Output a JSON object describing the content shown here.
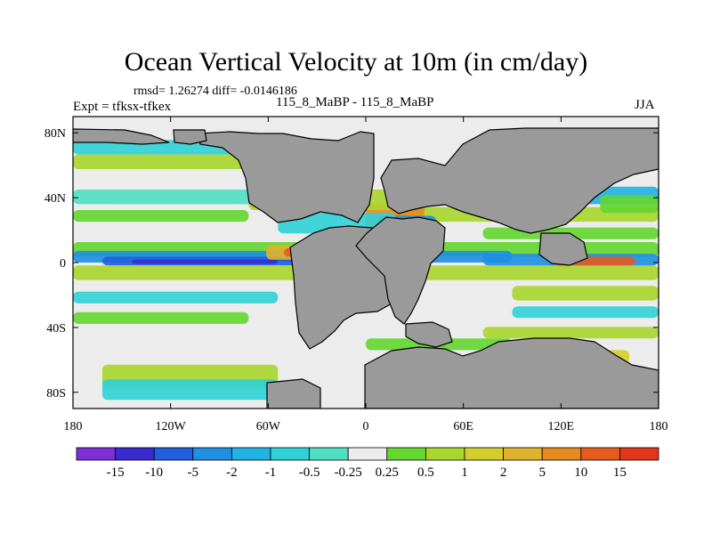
{
  "chart_data": {
    "type": "heatmap",
    "title": "Ocean Vertical Velocity at 10m (in cm/day)",
    "subtitle_stats": "rmsd= 1.26274 diff= -0.0146186",
    "experiment_label": "Expt = tfksx-tfkex",
    "runs_label": "115_8_MaBP - 115_8_MaBP",
    "season_label": "JJA",
    "x_ticks": [
      "180",
      "120W",
      "60W",
      "0",
      "60E",
      "120E",
      "180"
    ],
    "y_ticks": [
      "80N",
      "40N",
      "0",
      "40S",
      "80S"
    ],
    "xlim": [
      -180,
      180
    ],
    "ylim": [
      -90,
      90
    ],
    "colorbar": {
      "labels": [
        "-15",
        "-10",
        "-5",
        "-2",
        "-1",
        "-0.5",
        "-0.25",
        "0.25",
        "0.5",
        "1",
        "2",
        "5",
        "10",
        "15"
      ],
      "colors": [
        "#7b2fd6",
        "#3a2bd1",
        "#1f5fe0",
        "#1e8fe3",
        "#1fb3e6",
        "#2fd1d6",
        "#4fe0c4",
        "#ececec",
        "#63d62f",
        "#a8d62c",
        "#d2cf2a",
        "#e0b12a",
        "#e6891f",
        "#e65b1d",
        "#e2361b"
      ]
    },
    "land_color": "#9a9a9a"
  }
}
